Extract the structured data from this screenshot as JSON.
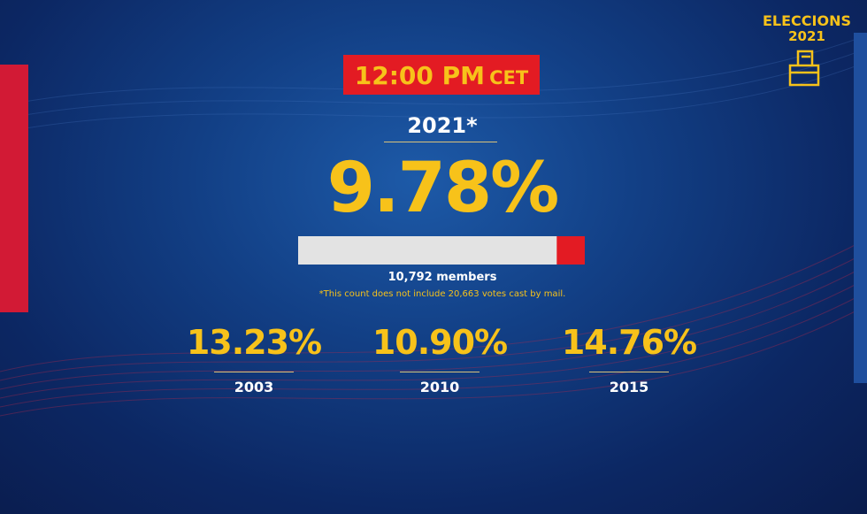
{
  "logo": {
    "title": "ELECCIONS",
    "year": "2021"
  },
  "time": {
    "clock": "12:00 PM",
    "zone": "CET"
  },
  "current": {
    "year": "2021*",
    "turnout": "9.78%",
    "turnout_value": 9.78,
    "members": "10,792 members",
    "note": "*This count does not include 20,663 votes cast by mail."
  },
  "history": [
    {
      "turnout": "13.23%",
      "year": "2003"
    },
    {
      "turnout": "10.90%",
      "year": "2010"
    },
    {
      "turnout": "14.76%",
      "year": "2015"
    }
  ]
}
